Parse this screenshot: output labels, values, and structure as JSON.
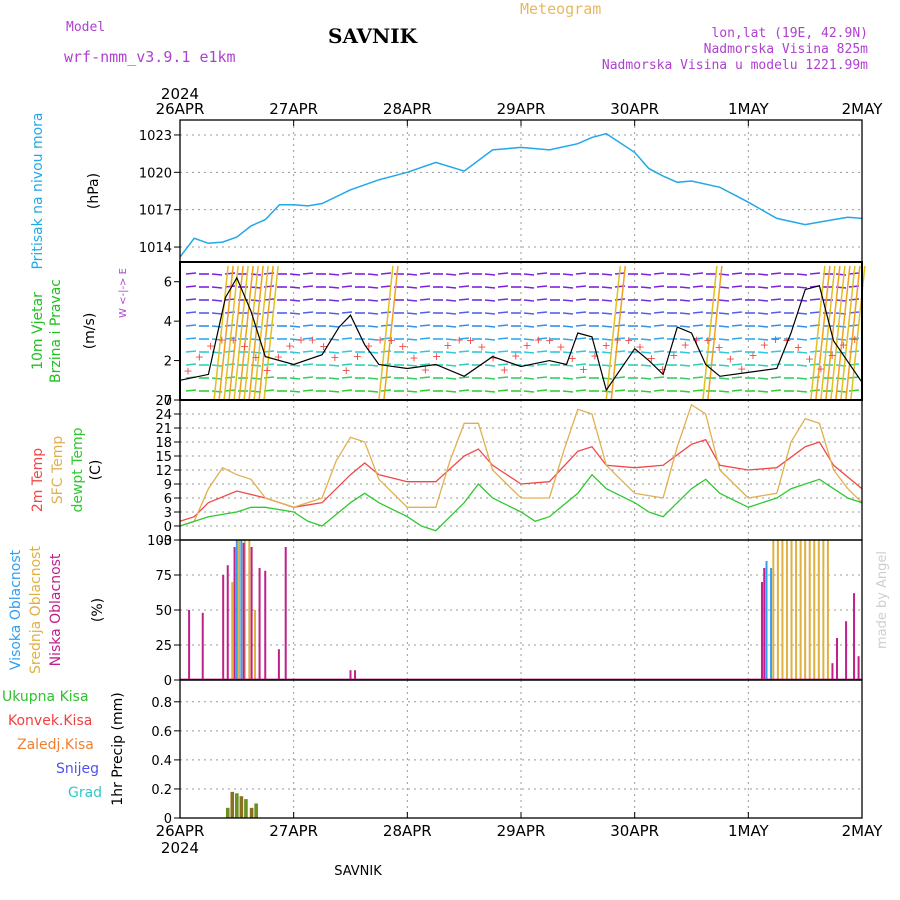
{
  "header": {
    "model_label": "Model",
    "model_name": "wrf-nmm_v3.9.1 e1km",
    "station": "SAVNIK",
    "meteogram": "Meteogram",
    "lonlat": "lon,lat (19E, 42.9N)",
    "elevation": "Nadmorska Visina 825m",
    "model_elevation": "Nadmorska Visina u modelu 1221.99m"
  },
  "footer": {
    "station": "SAVNIK",
    "credit": "made by Angel"
  },
  "colors": {
    "pressure": "#22a8e8",
    "temp2m": "#f04848",
    "sfc": "#e0b050",
    "dew": "#30c830",
    "high_cloud": "#30a0f0",
    "mid_cloud": "#e0b040",
    "low_cloud": "#c0208a",
    "rain_total": "#30c030",
    "rain_conv": "#f04040",
    "rain_frz": "#f08030",
    "snow": "#5050f0",
    "hail": "#30c8c8",
    "axis_label_purple": "#b040d0"
  },
  "time_axis": {
    "year": "2024",
    "labels": [
      "26APR",
      "27APR",
      "28APR",
      "29APR",
      "30APR",
      "1MAY",
      "2MAY"
    ]
  },
  "chart_data": [
    {
      "type": "line",
      "panel": "pressure",
      "ylabel": "Pritisak na nivou mora",
      "unit": "(hPa)",
      "yticks": [
        1014,
        1017,
        1020,
        1023
      ],
      "ylim": [
        1012.8,
        1024.2
      ],
      "grid": true,
      "series": [
        {
          "x": [
            0,
            0.125,
            0.25,
            0.375,
            0.5,
            0.625,
            0.75,
            0.875,
            1,
            1.125,
            1.25,
            1.5,
            1.75,
            2,
            2.25,
            2.5,
            2.75,
            3,
            3.25,
            3.5,
            3.625,
            3.75,
            4,
            4.125,
            4.25,
            4.375,
            4.5,
            4.75,
            5,
            5.25,
            5.5,
            5.75,
            5.875,
            6
          ],
          "y": [
            1013.2,
            1014.7,
            1014.3,
            1014.4,
            1014.8,
            1015.7,
            1016.2,
            1017.4,
            1017.4,
            1017.3,
            1017.5,
            1018.6,
            1019.4,
            1020.0,
            1020.8,
            1020.1,
            1021.8,
            1022.0,
            1021.8,
            1022.3,
            1022.8,
            1023.1,
            1021.6,
            1020.3,
            1019.7,
            1019.2,
            1019.3,
            1018.8,
            1017.6,
            1016.3,
            1015.8,
            1016.2,
            1016.4,
            1016.3
          ]
        }
      ]
    },
    {
      "type": "line",
      "panel": "wind",
      "ylabel": "10m Vjetar Brzina i Pravac",
      "unit": "(m/s)",
      "direction_key": "W <-|-> E",
      "yticks": [
        0,
        2,
        4,
        6
      ],
      "ylim": [
        0,
        7
      ],
      "series": [
        {
          "name": "speed",
          "x": [
            0,
            0.25,
            0.4,
            0.5,
            0.625,
            0.75,
            1,
            1.25,
            1.4,
            1.5,
            1.625,
            1.75,
            2,
            2.25,
            2.5,
            2.75,
            3,
            3.25,
            3.4,
            3.5,
            3.625,
            3.75,
            4,
            4.125,
            4.25,
            4.375,
            4.5,
            4.625,
            4.75,
            5,
            5.25,
            5.375,
            5.5,
            5.625,
            5.75,
            6
          ],
          "y": [
            1.0,
            1.3,
            5.2,
            6.2,
            4.5,
            2.2,
            1.8,
            2.3,
            3.7,
            4.3,
            2.8,
            1.8,
            1.6,
            1.8,
            1.2,
            2.2,
            1.7,
            2.0,
            1.8,
            3.4,
            3.2,
            0.5,
            2.6,
            2.0,
            1.3,
            3.7,
            3.4,
            1.8,
            1.2,
            1.4,
            1.6,
            3.4,
            5.6,
            5.8,
            3.0,
            0.9
          ]
        }
      ]
    },
    {
      "type": "line",
      "panel": "temperature",
      "ylabel": "2m Temp SFC Temp dewpt Temp",
      "unit": "(C)",
      "yticks": [
        -3,
        0,
        3,
        6,
        9,
        12,
        15,
        18,
        21,
        24,
        27
      ],
      "ylim": [
        -3,
        27
      ],
      "grid": true,
      "series": [
        {
          "name": "2m Temp",
          "x": [
            0,
            0.125,
            0.25,
            0.5,
            0.75,
            1,
            1.25,
            1.5,
            1.625,
            1.75,
            2,
            2.25,
            2.5,
            2.625,
            2.75,
            3,
            3.25,
            3.5,
            3.625,
            3.75,
            4,
            4.25,
            4.5,
            4.625,
            4.75,
            5,
            5.25,
            5.5,
            5.625,
            5.75,
            6
          ],
          "y": [
            1,
            2,
            5,
            7.5,
            6,
            4,
            5,
            11,
            13.5,
            11,
            9.5,
            9.5,
            15,
            16.5,
            13,
            9,
            9.5,
            16,
            17,
            13,
            12.5,
            13,
            17.5,
            18.5,
            13,
            12,
            12.5,
            17,
            18,
            13,
            8
          ]
        },
        {
          "name": "SFC Temp",
          "x": [
            0,
            0.125,
            0.25,
            0.375,
            0.5,
            0.625,
            0.75,
            1,
            1.25,
            1.375,
            1.5,
            1.625,
            1.75,
            2,
            2.25,
            2.375,
            2.5,
            2.625,
            2.75,
            3,
            3.25,
            3.375,
            3.5,
            3.625,
            3.75,
            4,
            4.25,
            4.375,
            4.5,
            4.625,
            4.75,
            5,
            5.25,
            5.375,
            5.5,
            5.625,
            5.75,
            5.875,
            6
          ],
          "y": [
            0,
            1,
            8,
            12.5,
            11,
            10,
            6,
            4,
            6,
            14,
            19,
            18,
            10,
            4,
            4,
            14,
            22,
            22,
            12,
            6,
            6,
            16,
            25,
            24,
            13,
            7,
            6,
            17,
            26,
            24,
            12,
            6,
            7,
            18,
            23,
            22,
            12,
            8,
            5
          ]
        },
        {
          "name": "dewpt Temp",
          "x": [
            0,
            0.25,
            0.5,
            0.625,
            0.75,
            1,
            1.125,
            1.25,
            1.5,
            1.625,
            1.75,
            2,
            2.125,
            2.25,
            2.5,
            2.625,
            2.75,
            3,
            3.125,
            3.25,
            3.5,
            3.625,
            3.75,
            4,
            4.125,
            4.25,
            4.5,
            4.625,
            4.75,
            5,
            5.25,
            5.375,
            5.5,
            5.625,
            5.75,
            5.875,
            6
          ],
          "y": [
            0,
            2,
            3,
            4,
            4,
            3,
            1,
            0,
            5,
            7,
            5,
            2,
            0,
            -1,
            5,
            9,
            6,
            3,
            1,
            2,
            7,
            11,
            8,
            5,
            3,
            2,
            8,
            10,
            7,
            4,
            6,
            8,
            9,
            10,
            8,
            6,
            5
          ]
        }
      ]
    },
    {
      "type": "bar",
      "panel": "cloud",
      "ylabel": "Visoka Oblacnost Srednja Oblacnost Niska Oblacnost",
      "unit": "(%)",
      "yticks": [
        0,
        25,
        50,
        75,
        100
      ],
      "ylim": [
        0,
        100
      ],
      "grid": true,
      "series": [
        {
          "name": "Visoka Oblacnost",
          "x": [
            0.5,
            0.54,
            5.16,
            5.2
          ],
          "values": [
            100,
            100,
            85,
            80
          ]
        },
        {
          "name": "Srednja Oblacnost",
          "x": [
            0.46,
            0.52,
            0.57,
            0.61,
            0.66,
            5.22,
            5.26,
            5.3,
            5.34,
            5.38,
            5.42,
            5.46,
            5.5,
            5.54,
            5.58,
            5.62,
            5.66,
            5.7
          ],
          "values": [
            70,
            100,
            100,
            100,
            50,
            100,
            100,
            100,
            100,
            100,
            100,
            100,
            100,
            100,
            100,
            100,
            100,
            100
          ]
        },
        {
          "name": "Niska Oblacnost",
          "x": [
            0.08,
            0.2,
            0.38,
            0.42,
            0.48,
            0.56,
            0.63,
            0.7,
            0.75,
            0.87,
            0.93,
            1.5,
            1.54,
            5.12,
            5.14,
            5.74,
            5.78,
            5.86,
            5.93,
            5.97
          ],
          "values": [
            50,
            48,
            75,
            82,
            95,
            98,
            95,
            80,
            78,
            22,
            95,
            7,
            7,
            70,
            80,
            12,
            30,
            42,
            62,
            17
          ]
        }
      ]
    },
    {
      "type": "bar",
      "panel": "precip",
      "ylabel": "1hr Precip (mm)",
      "unit": "(mm)",
      "legend": [
        "Ukupna Kisa",
        "Konvek.Kisa",
        "Zaledj.Kisa",
        "Snijeg",
        "Grad"
      ],
      "yticks": [
        0,
        0.2,
        0.4,
        0.6,
        0.8
      ],
      "ylim": [
        0,
        0.95
      ],
      "grid": true,
      "x": [
        0.42,
        0.46,
        0.5,
        0.54,
        0.58,
        0.63,
        0.67
      ],
      "values": [
        0.07,
        0.18,
        0.17,
        0.15,
        0.13,
        0.07,
        0.1
      ]
    }
  ]
}
